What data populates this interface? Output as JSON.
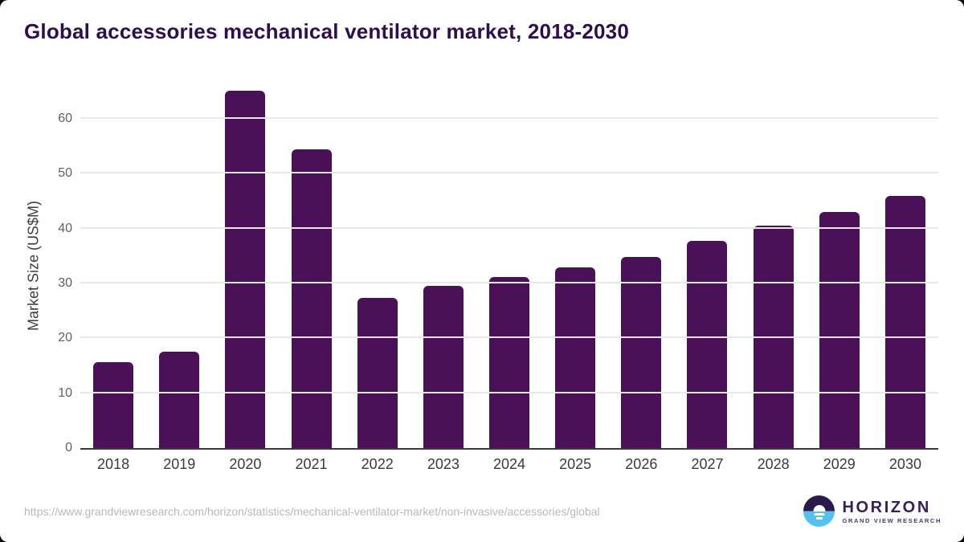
{
  "title": "Global accessories mechanical ventilator market, 2018-2030",
  "chart_data": {
    "type": "bar",
    "title": "Global accessories mechanical ventilator market, 2018-2030",
    "xlabel": "",
    "ylabel": "Market Size (US$M)",
    "unit": "US$M",
    "categories": [
      "2018",
      "2019",
      "2020",
      "2021",
      "2022",
      "2023",
      "2024",
      "2025",
      "2026",
      "2027",
      "2028",
      "2029",
      "2030"
    ],
    "values": [
      15.6,
      17.5,
      65.2,
      54.5,
      27.4,
      29.5,
      31.2,
      32.9,
      34.8,
      37.7,
      40.6,
      43.1,
      45.9
    ],
    "yticks": [
      0,
      10,
      20,
      30,
      40,
      50,
      60
    ],
    "ylim": [
      0,
      66.3
    ],
    "grid": true,
    "legend": "none",
    "bar_color": "#4a1158"
  },
  "colors": {
    "title": "#2e0f4e",
    "bar": "#4a1158",
    "gridline": "#e9e9e9",
    "axis_line": "#3a3a3a",
    "tick_label": "#606060",
    "url_text": "#b8b8b8",
    "logo_dark": "#2c1a4d",
    "logo_blue": "#56c1ef"
  },
  "footer": {
    "url": "https://www.grandviewresearch.com/horizon/statistics/mechanical-ventilator-market/non-invasive/accessories/global",
    "logo": {
      "brand": "HORIZON",
      "subtitle": "GRAND VIEW RESEARCH"
    }
  }
}
